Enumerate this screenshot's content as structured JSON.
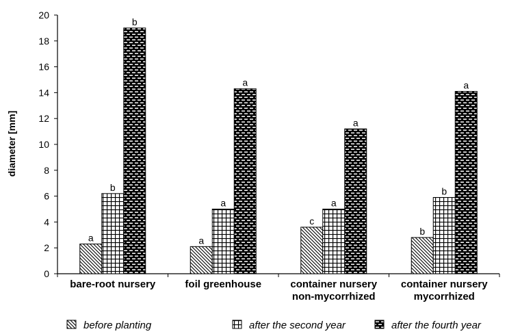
{
  "chart_data": {
    "type": "bar",
    "ylabel": "diameter [mm]",
    "ylim": [
      0,
      20
    ],
    "yticks": [
      0,
      2,
      4,
      6,
      8,
      10,
      12,
      14,
      16,
      18,
      20
    ],
    "categories": [
      [
        "bare-root nursery"
      ],
      [
        "foil greenhouse"
      ],
      [
        "container nursery",
        "non-mycorrhized"
      ],
      [
        "container nursery",
        "mycorrhized"
      ]
    ],
    "series": [
      {
        "name": "before planting",
        "pattern": "diagonal",
        "values": [
          2.3,
          2.1,
          3.6,
          2.8
        ],
        "labels": [
          "a",
          "a",
          "c",
          "b"
        ]
      },
      {
        "name": "after the second year",
        "pattern": "grid",
        "values": [
          6.2,
          5.0,
          5.0,
          5.9
        ],
        "labels": [
          "b",
          "a",
          "a",
          "b"
        ]
      },
      {
        "name": "after the fourth year",
        "pattern": "brick",
        "values": [
          19.0,
          14.3,
          11.2,
          14.1
        ],
        "labels": [
          "b",
          "a",
          "a",
          "a"
        ]
      }
    ],
    "grid": false,
    "legend_position": "bottom",
    "colors": {
      "ink": "#000000",
      "background": "#ffffff"
    }
  }
}
